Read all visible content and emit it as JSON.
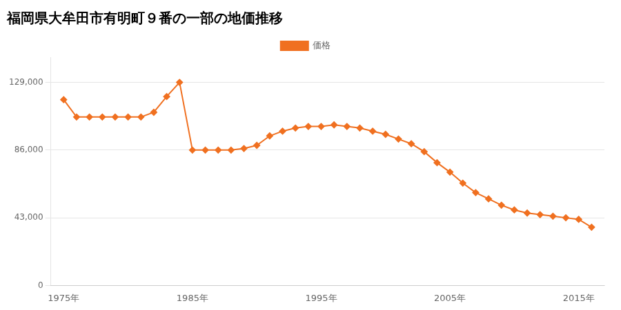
{
  "chart_data": {
    "type": "line",
    "title": "福岡県大牟田市有明町９番の一部の地価推移",
    "x": [
      1975,
      1976,
      1977,
      1978,
      1979,
      1980,
      1981,
      1982,
      1983,
      1984,
      1985,
      1986,
      1987,
      1988,
      1989,
      1990,
      1991,
      1992,
      1993,
      1994,
      1995,
      1996,
      1997,
      1998,
      1999,
      2000,
      2001,
      2002,
      2003,
      2004,
      2005,
      2006,
      2007,
      2008,
      2009,
      2010,
      2011,
      2012,
      2013,
      2014,
      2015,
      2016
    ],
    "series": [
      {
        "name": "価格",
        "color": "#F07020",
        "marker": "diamond",
        "values": [
          118000,
          107000,
          107000,
          107000,
          107000,
          107000,
          107000,
          110000,
          120000,
          129000,
          86000,
          86000,
          86000,
          86000,
          87000,
          89000,
          95000,
          98000,
          100000,
          101000,
          101000,
          102000,
          101000,
          100000,
          98000,
          96000,
          93000,
          90000,
          85000,
          78000,
          72000,
          65000,
          59000,
          55000,
          51000,
          48000,
          46000,
          45000,
          44000,
          43000,
          42000,
          37000
        ]
      }
    ],
    "xlim": [
      1974,
      2017
    ],
    "xticks": [
      {
        "value": 1975,
        "label": "1975年"
      },
      {
        "value": 1985,
        "label": "1985年"
      },
      {
        "value": 1995,
        "label": "1995年"
      },
      {
        "value": 2005,
        "label": "2005年"
      },
      {
        "value": 2015,
        "label": "2015年"
      }
    ],
    "ylim": [
      0,
      145000
    ],
    "yticks": [
      0,
      {
        "value": 43000,
        "label": "43,000"
      },
      {
        "value": 86000,
        "label": "86,000"
      },
      {
        "value": 129000,
        "label": "129,000"
      }
    ],
    "grid": "y",
    "legend": "top"
  }
}
